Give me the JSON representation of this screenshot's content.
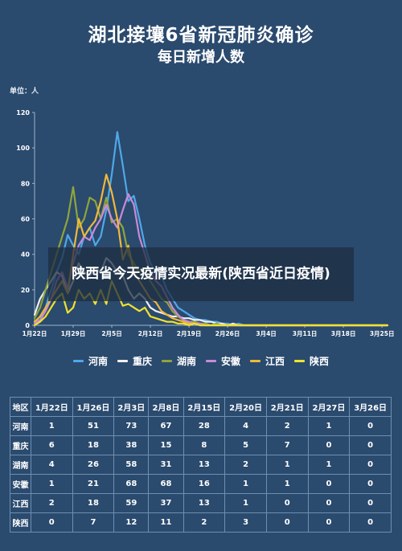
{
  "title": "湖北接壤6省新冠肺炎确诊",
  "subtitle": "每日新增人数",
  "unit_label": "单位：人",
  "overlay_text": "陕西省今天疫情实况最新(陕西省近日疫情)",
  "chart_data": {
    "type": "line",
    "ylim": [
      0,
      120
    ],
    "yticks": [
      0,
      20,
      40,
      60,
      80,
      100,
      120
    ],
    "x_ticks": [
      "1月22日",
      "1月29日",
      "2月5日",
      "2月12日",
      "2月19日",
      "2月26日",
      "3月4日",
      "3月11日",
      "3月18日",
      "3月25日"
    ],
    "x_days": 64,
    "grid": false,
    "legend_position": "bottom",
    "series": [
      {
        "name": "河南",
        "color": "#4fa8e8",
        "values": [
          1,
          5,
          10,
          20,
          30,
          38,
          51,
          45,
          40,
          50,
          55,
          45,
          50,
          65,
          85,
          109,
          90,
          70,
          73,
          60,
          45,
          35,
          30,
          28,
          20,
          15,
          10,
          8,
          6,
          4,
          3,
          3,
          2,
          2,
          1,
          1,
          0,
          1,
          0,
          0,
          0,
          0,
          0,
          0,
          0,
          0,
          0,
          0,
          0,
          0,
          0,
          0,
          0,
          0,
          0,
          0,
          0,
          0,
          0,
          0,
          0,
          0,
          0,
          0,
          0
        ]
      },
      {
        "name": "重庆",
        "color": "#f0f0f0",
        "values": [
          6,
          15,
          20,
          25,
          30,
          28,
          18,
          25,
          35,
          30,
          28,
          32,
          30,
          38,
          35,
          30,
          28,
          20,
          15,
          18,
          15,
          10,
          8,
          7,
          6,
          5,
          5,
          4,
          4,
          3,
          3,
          2,
          2,
          1,
          1,
          0,
          1,
          0,
          0,
          0,
          0,
          0,
          0,
          0,
          0,
          0,
          0,
          0,
          0,
          0,
          0,
          0,
          0,
          0,
          0,
          0,
          0,
          0,
          0,
          0,
          0,
          0,
          0,
          0,
          0
        ]
      },
      {
        "name": "湖南",
        "color": "#8fa53a",
        "values": [
          4,
          10,
          20,
          30,
          40,
          50,
          60,
          78,
          55,
          60,
          72,
          70,
          60,
          72,
          58,
          60,
          55,
          40,
          35,
          30,
          31,
          25,
          20,
          15,
          13,
          8,
          5,
          3,
          2,
          2,
          1,
          1,
          0,
          1,
          0,
          0,
          0,
          0,
          0,
          0,
          0,
          0,
          0,
          0,
          0,
          0,
          0,
          0,
          0,
          0,
          0,
          0,
          0,
          0,
          0,
          0,
          0,
          0,
          0,
          0,
          0,
          0,
          0,
          0,
          0
        ]
      },
      {
        "name": "安徽",
        "color": "#c98ad8",
        "values": [
          1,
          3,
          8,
          15,
          25,
          30,
          21,
          35,
          45,
          50,
          48,
          55,
          60,
          68,
          60,
          55,
          65,
          74,
          68,
          50,
          40,
          30,
          25,
          22,
          16,
          10,
          6,
          3,
          2,
          1,
          1,
          0,
          0,
          0,
          0,
          0,
          0,
          0,
          0,
          0,
          0,
          0,
          0,
          0,
          0,
          0,
          0,
          0,
          0,
          0,
          0,
          0,
          0,
          0,
          0,
          0,
          0,
          0,
          0,
          0,
          0,
          0,
          0,
          0,
          0
        ]
      },
      {
        "name": "江西",
        "color": "#f0b83a",
        "values": [
          2,
          5,
          10,
          15,
          20,
          25,
          18,
          40,
          60,
          50,
          55,
          59,
          70,
          85,
          75,
          60,
          37,
          45,
          30,
          25,
          20,
          15,
          13,
          8,
          6,
          4,
          3,
          2,
          1,
          1,
          0,
          0,
          0,
          0,
          0,
          0,
          0,
          0,
          0,
          0,
          0,
          0,
          0,
          0,
          0,
          0,
          0,
          0,
          0,
          0,
          0,
          0,
          0,
          0,
          0,
          0,
          0,
          0,
          0,
          0,
          0,
          0,
          0,
          0,
          0
        ]
      },
      {
        "name": "陕西",
        "color": "#f2e22c",
        "values": [
          0,
          2,
          5,
          10,
          15,
          18,
          7,
          10,
          20,
          15,
          18,
          12,
          20,
          12,
          25,
          18,
          11,
          12,
          10,
          8,
          10,
          5,
          4,
          3,
          2,
          2,
          1,
          1,
          0,
          1,
          0,
          0,
          0,
          0,
          0,
          0,
          0,
          0,
          0,
          0,
          0,
          0,
          0,
          0,
          0,
          0,
          0,
          0,
          0,
          0,
          0,
          0,
          0,
          0,
          0,
          0,
          0,
          0,
          0,
          0,
          0,
          0,
          0,
          0,
          0
        ]
      }
    ]
  },
  "table": {
    "header": [
      "地区",
      "1月22日",
      "1月26日",
      "2月3日",
      "2月8日",
      "2月15日",
      "2月20日",
      "2月21日",
      "2月27日",
      "3月26日"
    ],
    "rows": [
      [
        "河南",
        "1",
        "51",
        "73",
        "67",
        "28",
        "4",
        "2",
        "1",
        "0"
      ],
      [
        "重庆",
        "6",
        "18",
        "38",
        "15",
        "8",
        "5",
        "7",
        "0",
        "0"
      ],
      [
        "湖南",
        "4",
        "26",
        "58",
        "31",
        "13",
        "2",
        "1",
        "1",
        "0"
      ],
      [
        "安徽",
        "1",
        "21",
        "68",
        "68",
        "16",
        "1",
        "1",
        "0",
        "0"
      ],
      [
        "江西",
        "2",
        "18",
        "59",
        "37",
        "13",
        "1",
        "0",
        "0",
        "0"
      ],
      [
        "陕西",
        "0",
        "7",
        "12",
        "11",
        "2",
        "3",
        "0",
        "0",
        "0"
      ]
    ]
  }
}
